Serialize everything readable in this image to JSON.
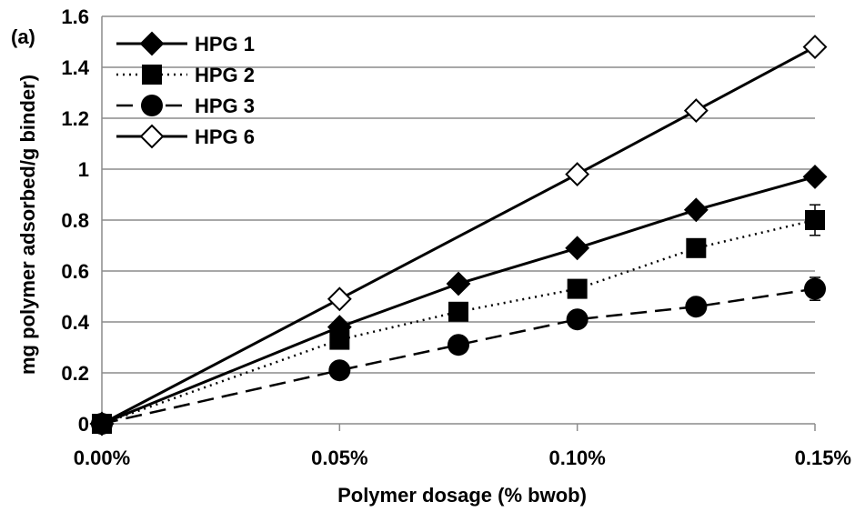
{
  "chart_data": {
    "type": "line",
    "panel_label": "(a)",
    "xlabel": "Polymer dosage (% bwob)",
    "ylabel": "mg polymer adsorbed/g binder)",
    "x": [
      0.0,
      0.05,
      0.075,
      0.1,
      0.125,
      0.15
    ],
    "xlim": [
      0.0,
      0.15
    ],
    "ylim": [
      0,
      1.6
    ],
    "x_ticks": [
      {
        "value": 0.0,
        "label": "0.00%"
      },
      {
        "value": 0.05,
        "label": "0.05%"
      },
      {
        "value": 0.1,
        "label": "0.10%"
      },
      {
        "value": 0.15,
        "label": "0.15%"
      }
    ],
    "y_ticks": [
      {
        "value": 0,
        "label": "0"
      },
      {
        "value": 0.2,
        "label": "0.2"
      },
      {
        "value": 0.4,
        "label": "0.4"
      },
      {
        "value": 0.6,
        "label": "0.6"
      },
      {
        "value": 0.8,
        "label": "0.8"
      },
      {
        "value": 1.0,
        "label": "1"
      },
      {
        "value": 1.2,
        "label": "1.2"
      },
      {
        "value": 1.4,
        "label": "1.4"
      },
      {
        "value": 1.6,
        "label": "1.6"
      }
    ],
    "grid": "horizontal",
    "legend_position": "top-left",
    "series": [
      {
        "name": "HPG 1",
        "marker": "diamond-filled",
        "line": "solid",
        "values": [
          0,
          0.38,
          0.55,
          0.69,
          0.84,
          0.97
        ]
      },
      {
        "name": "HPG 2",
        "marker": "square-filled",
        "line": "dotted",
        "values": [
          0,
          0.33,
          0.44,
          0.53,
          0.69,
          0.8
        ],
        "error": [
          0,
          0.02,
          0.02,
          0.02,
          0.02,
          0.06
        ]
      },
      {
        "name": "HPG 3",
        "marker": "circle-filled",
        "line": "dashed",
        "values": [
          0,
          0.21,
          0.31,
          0.41,
          0.46,
          0.53
        ],
        "error": [
          0,
          0.01,
          0.01,
          0.01,
          0.01,
          0.045
        ]
      },
      {
        "name": "HPG 6",
        "marker": "diamond-open",
        "line": "solid",
        "values": [
          0,
          0.49,
          null,
          0.98,
          1.23,
          1.48
        ]
      }
    ],
    "colors": {
      "line": "#000000",
      "grid": "#8c8c8c",
      "background": "#ffffff"
    }
  }
}
